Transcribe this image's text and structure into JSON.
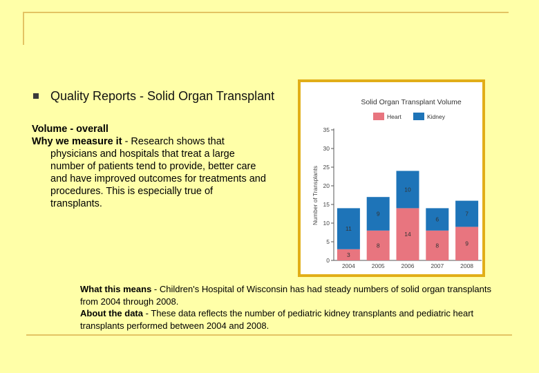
{
  "slide": {
    "heading": "Quality Reports - Solid Organ Transplant",
    "subtitle": "Volume - overall",
    "why_label": "Why we measure it",
    "why_text": " - Research shows that physicians and hospitals that treat a large number of patients tend to provide, better care and have improved outcomes for treatments and procedures. This is especially true of transplants.",
    "means_label": "What this means",
    "means_text": " - Children's Hospital of Wisconsin has had steady numbers of solid organ transplants from 2004 through 2008.",
    "about_label": "About the data",
    "about_text": " - These data reflects the number of pediatric kidney transplants and pediatric heart transplants performed between 2004 and 2008."
  },
  "colors": {
    "background": "#FFFFA8",
    "frame": "#E3C363",
    "chart_border": "#E1AE18",
    "heart": "#E8757F",
    "kidney": "#1E74B8"
  },
  "chart_data": {
    "type": "bar",
    "stacked": true,
    "title": "Solid Organ Transplant Volume",
    "categories": [
      "2004",
      "2005",
      "2006",
      "2007",
      "2008"
    ],
    "series": [
      {
        "name": "Heart",
        "values": [
          3,
          8,
          14,
          8,
          9
        ]
      },
      {
        "name": "Kidney",
        "values": [
          11,
          9,
          10,
          6,
          7
        ]
      }
    ],
    "ylabel": "Number of Transplants",
    "xlabel": "",
    "ylim": [
      0,
      35
    ],
    "yticks": [
      "0",
      "5",
      "10",
      "15",
      "20",
      "25",
      "30",
      "35"
    ],
    "legend": "top",
    "grid": false
  }
}
